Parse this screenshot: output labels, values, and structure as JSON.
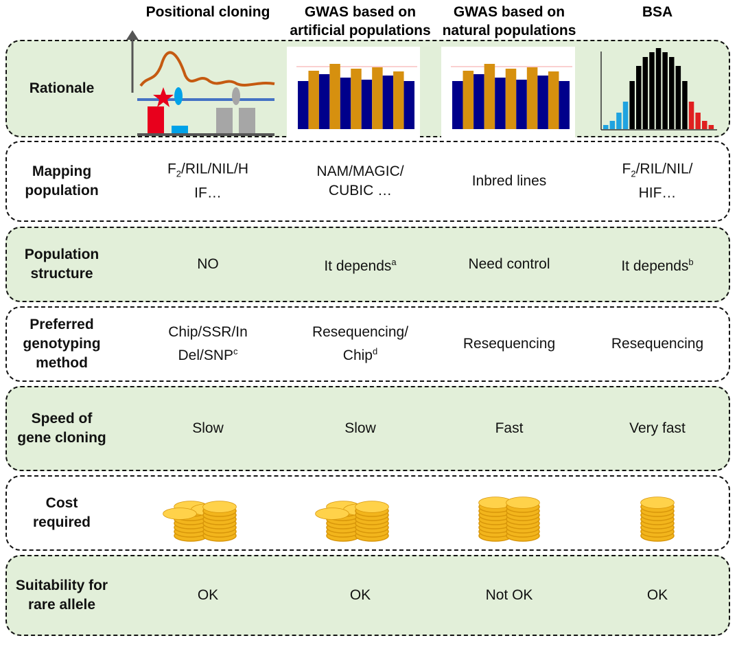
{
  "columns": [
    [
      "Positional cloning"
    ],
    [
      "GWAS based on",
      "artificial populations"
    ],
    [
      "GWAS based on",
      "natural populations"
    ],
    [
      "BSA"
    ]
  ],
  "rows": [
    {
      "label": [
        "Rationale"
      ]
    },
    {
      "label": [
        "Mapping",
        "population"
      ],
      "cells": [
        [
          [
            {
              "text": "F"
            },
            {
              "sub": "2"
            },
            {
              "text": "/RIL/NIL/H"
            }
          ],
          [
            {
              "text": "IF…"
            }
          ]
        ],
        [
          [
            {
              "text": "NAM/MAGIC/"
            }
          ],
          [
            {
              "text": "CUBIC …"
            }
          ]
        ],
        [
          [
            {
              "text": "Inbred lines"
            }
          ]
        ],
        [
          [
            {
              "text": "F"
            },
            {
              "sub": "2"
            },
            {
              "text": "/RIL/NIL/"
            }
          ],
          [
            {
              "text": "HIF…"
            }
          ]
        ]
      ]
    },
    {
      "label": [
        "Population",
        "structure"
      ],
      "cells": [
        [
          [
            {
              "text": "NO"
            }
          ]
        ],
        [
          [
            {
              "text": "It depends"
            },
            {
              "sup": "a"
            }
          ]
        ],
        [
          [
            {
              "text": "Need control"
            }
          ]
        ],
        [
          [
            {
              "text": "It depends"
            },
            {
              "sup": "b"
            }
          ]
        ]
      ]
    },
    {
      "label": [
        "Preferred",
        "genotyping",
        "method"
      ],
      "cells": [
        [
          [
            {
              "text": "Chip/SSR/In"
            }
          ],
          [
            {
              "text": "Del/SNP"
            },
            {
              "sup": "c"
            }
          ]
        ],
        [
          [
            {
              "text": "Resequencing/"
            }
          ],
          [
            {
              "text": "Chip"
            },
            {
              "sup": "d"
            }
          ]
        ],
        [
          [
            {
              "text": "Resequencing"
            }
          ]
        ],
        [
          [
            {
              "text": "Resequencing"
            }
          ]
        ]
      ]
    },
    {
      "label": [
        "Speed of",
        "gene cloning"
      ],
      "cells": [
        [
          [
            {
              "text": "Slow"
            }
          ]
        ],
        [
          [
            {
              "text": "Slow"
            }
          ]
        ],
        [
          [
            {
              "text": "Fast"
            }
          ]
        ],
        [
          [
            {
              "text": "Very fast"
            }
          ]
        ]
      ]
    },
    {
      "label": [
        "Cost",
        "required"
      ]
    },
    {
      "label": [
        "Suitability for",
        "rare allele"
      ],
      "cells": [
        [
          [
            {
              "text": "OK"
            }
          ]
        ],
        [
          [
            {
              "text": "OK"
            }
          ]
        ],
        [
          [
            {
              "text": "Not OK"
            }
          ]
        ],
        [
          [
            {
              "text": "OK"
            }
          ]
        ]
      ]
    }
  ]
}
